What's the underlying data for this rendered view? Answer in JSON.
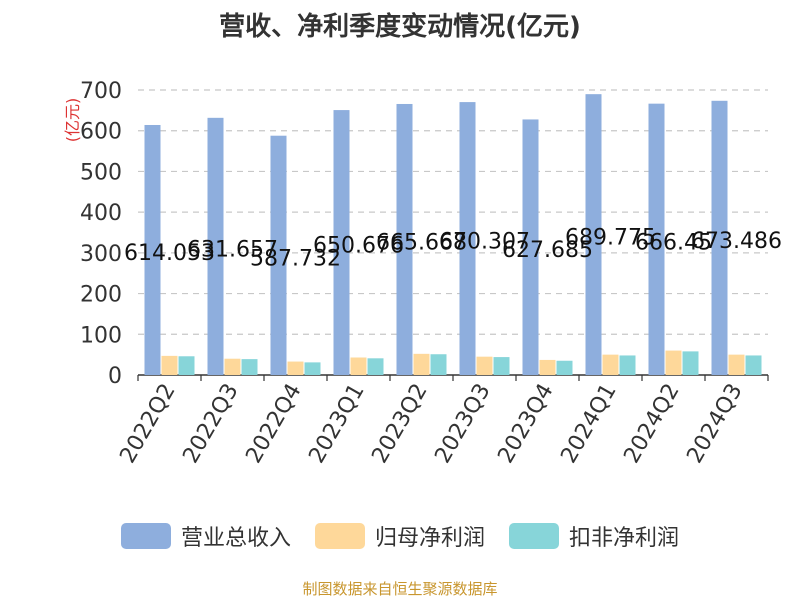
{
  "chart_data": {
    "type": "bar",
    "title": "营收、净利季度变动情况(亿元)",
    "ylabel": "(亿元)",
    "xlabel": "",
    "categories": [
      "2022Q2",
      "2022Q3",
      "2022Q4",
      "2023Q1",
      "2023Q2",
      "2023Q3",
      "2023Q4",
      "2024Q1",
      "2024Q2",
      "2024Q3"
    ],
    "ylim": [
      0,
      700
    ],
    "yticks": [
      0,
      100,
      200,
      300,
      400,
      500,
      600,
      700
    ],
    "grid": true,
    "legend_position": "bottom",
    "series": [
      {
        "name": "营业总收入",
        "color": "#8eaedd",
        "values": [
          614.053,
          631.657,
          587.732,
          650.676,
          665.668,
          670.307,
          627.685,
          689.775,
          666.45,
          673.486
        ],
        "labels": [
          "614.053",
          "631.657",
          "587.732",
          "650.676",
          "665.668",
          "670.307",
          "627.685",
          "689.775",
          "666.45",
          "673.486"
        ]
      },
      {
        "name": "归母净利润",
        "color": "#fed89a",
        "values": [
          47,
          40,
          33,
          43,
          52,
          45,
          37,
          50,
          60,
          50
        ]
      },
      {
        "name": "扣非净利润",
        "color": "#87d5d9",
        "values": [
          46,
          39,
          31,
          41,
          51,
          44,
          35,
          48,
          58,
          48
        ]
      }
    ]
  },
  "source_text": "制图数据来自恒生聚源数据库"
}
